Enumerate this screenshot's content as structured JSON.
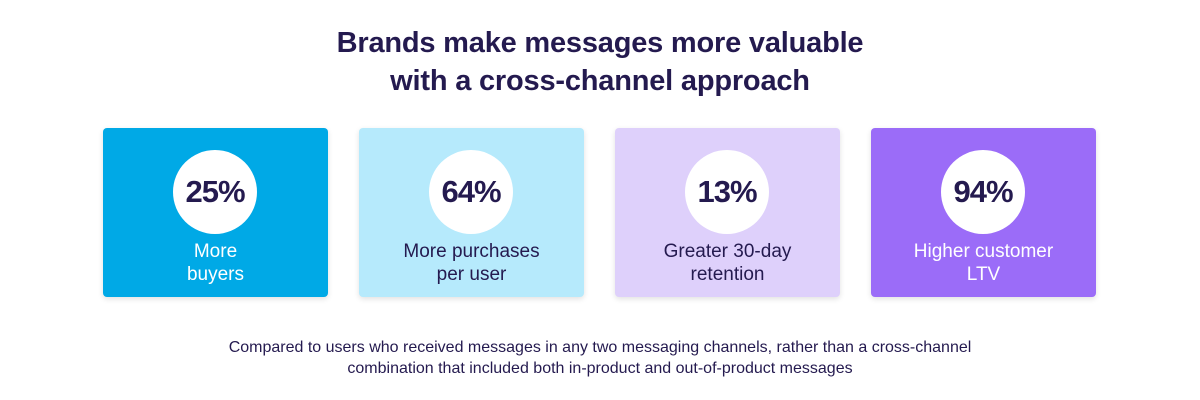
{
  "heading": {
    "line1": "Brands make messages more valuable",
    "line2": "with a cross-channel approach"
  },
  "cards": [
    {
      "value": "25%",
      "line1": "More",
      "line2": "buyers",
      "bg": "#00a9e6",
      "text_color": "#ffffff"
    },
    {
      "value": "64%",
      "line1": "More purchases",
      "line2": "per user",
      "bg": "#b6eafc",
      "text_color": "#241a4f"
    },
    {
      "value": "13%",
      "line1": "Greater 30-day",
      "line2": "retention",
      "bg": "#ded0fb",
      "text_color": "#241a4f"
    },
    {
      "value": "94%",
      "line1": "Higher customer",
      "line2": "LTV",
      "bg": "#9b6cf8",
      "text_color": "#ffffff"
    }
  ],
  "footnote": {
    "line1": "Compared to users who received messages in any two messaging channels, rather than a cross-channel",
    "line2": "combination that included both in-product and out-of-product messages"
  }
}
